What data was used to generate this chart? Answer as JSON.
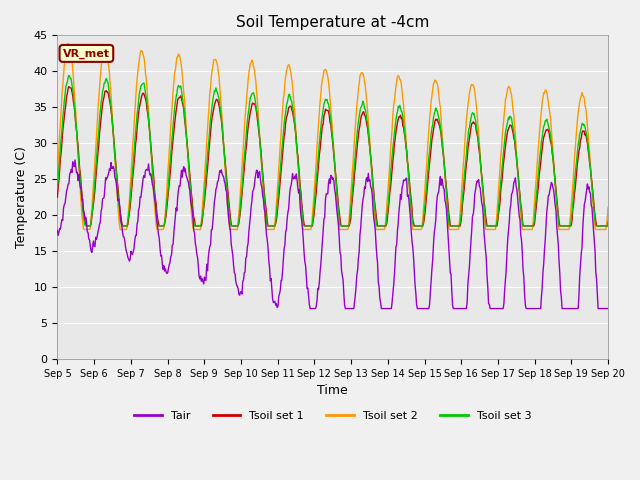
{
  "title": "Soil Temperature at -4cm",
  "xlabel": "Time",
  "ylabel": "Temperature (C)",
  "ylim": [
    0,
    45
  ],
  "yticks": [
    0,
    5,
    10,
    15,
    20,
    25,
    30,
    35,
    40,
    45
  ],
  "fig_bg_color": "#f0f0f0",
  "plot_bg_color": "#e8e8e8",
  "line_colors": {
    "Tair": "#9900cc",
    "Tsoil set 1": "#cc0000",
    "Tsoil set 2": "#ff9900",
    "Tsoil set 3": "#00cc00"
  },
  "legend_label": "VR_met",
  "n_points": 720
}
